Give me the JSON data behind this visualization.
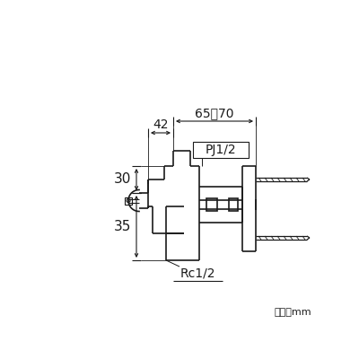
{
  "bg_color": "#ffffff",
  "line_color": "#1a1a1a",
  "text_color": "#1a1a1a",
  "figsize": [
    4.0,
    4.0
  ],
  "dpi": 100,
  "unit_text": "単位：mm",
  "label_42": "42",
  "label_65_70": "65～70",
  "label_PJ": "PJ1/2",
  "label_Rc": "Rc1/2",
  "label_30": "30",
  "label_35": "35"
}
